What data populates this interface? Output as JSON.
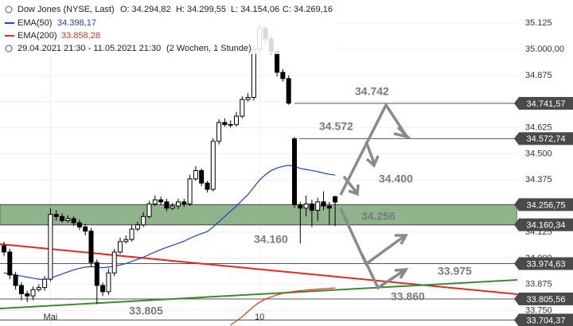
{
  "chart_data": {
    "type": "candlestick",
    "title": "Dow Jones (NYSE, Last)",
    "ohlc_legend": [
      "O: 34.294,82",
      "H: 34.299,55",
      "L: 34.154,06",
      "C: 34.269,16"
    ],
    "period": "29.04.2021 21:30 - 11.05.2021 21:30",
    "interval": "(2 Wochen, 1 Stunde)",
    "up_color": "#ffffff",
    "down_color": "#000000",
    "categories": [
      null,
      null,
      null,
      null,
      null,
      null,
      null,
      null,
      "Mai",
      null,
      null,
      null,
      null,
      null,
      null,
      null,
      null,
      null,
      null,
      null,
      null,
      null,
      null,
      null,
      null,
      null,
      null,
      null,
      null,
      null,
      null,
      null,
      null,
      null,
      null,
      null,
      null,
      null,
      null,
      null,
      null,
      null,
      null,
      null,
      "10",
      null,
      null,
      null,
      null,
      null,
      null,
      null,
      null,
      null,
      null,
      null,
      null,
      null
    ],
    "open": [
      34060,
      34030,
      33920,
      33870,
      33830,
      33820,
      33850,
      33860,
      33900,
      34210,
      34200,
      34180,
      34190,
      34170,
      34150,
      34130,
      33980,
      33870,
      33840,
      33930,
      34030,
      34080,
      34090,
      34140,
      34160,
      34200,
      34260,
      34280,
      34270,
      34240,
      34250,
      34270,
      34260,
      34380,
      34420,
      34360,
      34330,
      34560,
      34650,
      34640,
      34640,
      34680,
      34760,
      34770,
      35000,
      35100,
      35050,
      34990,
      34890,
      34860,
      34572,
      34256,
      34240,
      34260,
      34230,
      34270,
      34250,
      34294.82
    ],
    "high": [
      34080,
      34045,
      33935,
      33885,
      33845,
      33865,
      33875,
      33915,
      34240,
      34230,
      34215,
      34205,
      34200,
      34185,
      34165,
      34145,
      33995,
      33885,
      33950,
      34045,
      34100,
      34110,
      34160,
      34175,
      34220,
      34275,
      34300,
      34295,
      34285,
      34265,
      34285,
      34285,
      34400,
      34440,
      34430,
      34370,
      34575,
      34665,
      34670,
      34660,
      34700,
      34775,
      34790,
      35015,
      35120,
      35115,
      35065,
      35005,
      34905,
      34875,
      34580,
      34270,
      34300,
      34280,
      34290,
      34320,
      34270,
      34299.55
    ],
    "low": [
      34010,
      33900,
      33850,
      33800,
      33790,
      33800,
      33840,
      33845,
      33890,
      34180,
      34170,
      34170,
      34155,
      34135,
      34110,
      33960,
      33780,
      33820,
      33825,
      33915,
      34020,
      34070,
      34080,
      34130,
      34150,
      34190,
      34250,
      34255,
      34225,
      34230,
      34235,
      34245,
      34250,
      34370,
      34345,
      34315,
      34320,
      34545,
      34630,
      34625,
      34630,
      34670,
      34750,
      34755,
      34985,
      35035,
      34975,
      34870,
      34845,
      34735,
      34240,
      34070,
      34200,
      34150,
      34180,
      34230,
      34160,
      34154.06
    ],
    "close": [
      34030,
      33920,
      33870,
      33830,
      33820,
      33850,
      33860,
      33900,
      34210,
      34200,
      34180,
      34190,
      34170,
      34150,
      34130,
      33980,
      33870,
      33840,
      33930,
      34030,
      34080,
      34090,
      34140,
      34160,
      34200,
      34260,
      34280,
      34270,
      34240,
      34250,
      34270,
      34260,
      34380,
      34420,
      34360,
      34330,
      34560,
      34650,
      34640,
      34640,
      34680,
      34760,
      34770,
      35000,
      35100,
      35050,
      34990,
      34890,
      34860,
      34742,
      34256,
      34240,
      34260,
      34230,
      34270,
      34250,
      34240,
      34269.16
    ],
    "series": [
      {
        "name": "EMA(50)",
        "value_label": "34.398,17",
        "color": "#1f3fd6",
        "values": [
          33930,
          33925,
          33920,
          33915,
          33910,
          33905,
          33900,
          33898,
          33905,
          33915,
          33925,
          33935,
          33945,
          33952,
          33958,
          33960,
          33958,
          33955,
          33958,
          33962,
          33968,
          33975,
          33985,
          33995,
          34005,
          34018,
          34030,
          34042,
          34052,
          34062,
          34072,
          34082,
          34095,
          34108,
          34118,
          34128,
          34150,
          34175,
          34200,
          34225,
          34250,
          34278,
          34305,
          34340,
          34375,
          34400,
          34420,
          34432,
          34440,
          34445,
          34440,
          34430,
          34425,
          34420,
          34415,
          34408,
          34402,
          34398.17
        ]
      },
      {
        "name": "EMA(200)",
        "value_label": "33.858,28",
        "color": "#e0301e",
        "values": [
          null,
          null,
          null,
          null,
          null,
          null,
          null,
          null,
          null,
          null,
          null,
          null,
          null,
          null,
          null,
          null,
          null,
          null,
          null,
          null,
          null,
          null,
          null,
          null,
          null,
          null,
          null,
          null,
          null,
          null,
          null,
          null,
          null,
          null,
          null,
          null,
          null,
          null,
          null,
          33680,
          33700,
          33720,
          33745,
          33770,
          33790,
          33805,
          33815,
          33825,
          33832,
          33838,
          33842,
          33845,
          33848,
          33850,
          33852,
          33854,
          33856,
          33858.28
        ]
      }
    ],
    "ylim": [
      33676,
      35236
    ],
    "yticks": [
      {
        "value": 35125,
        "label": "35.125"
      },
      {
        "value": 35000,
        "label": "35.000,00"
      },
      {
        "value": 34875,
        "label": "34.875"
      },
      {
        "value": 34750,
        "label": "34.750"
      },
      {
        "value": 34625,
        "label": "34.625"
      },
      {
        "value": 34500,
        "label": "34.500"
      },
      {
        "value": 34375,
        "label": "34.375"
      },
      {
        "value": 34250,
        "label": "34.250"
      },
      {
        "value": 34125,
        "label": "34.125"
      },
      {
        "value": 34000,
        "label": "34.000"
      },
      {
        "value": 33875,
        "label": "33.875"
      },
      {
        "value": 33750,
        "label": "33.750"
      }
    ],
    "levels": [
      {
        "value": 34741.57,
        "label": "34.741,57"
      },
      {
        "value": 34572.74,
        "label": "34.572,74"
      },
      {
        "value": 34256.75,
        "label": "34.256,75"
      },
      {
        "value": 34160.34,
        "label": "34.160,34"
      },
      {
        "value": 33974.63,
        "label": "33.974,63"
      },
      {
        "value": 33805.56,
        "label": "33.805,56"
      },
      {
        "value": 33704.37,
        "label": "33.704,37"
      }
    ],
    "annotations": [
      "34.742",
      "34.572",
      "34.400",
      "34.256",
      "34.160",
      "33.975",
      "33.860",
      "33.805"
    ]
  }
}
